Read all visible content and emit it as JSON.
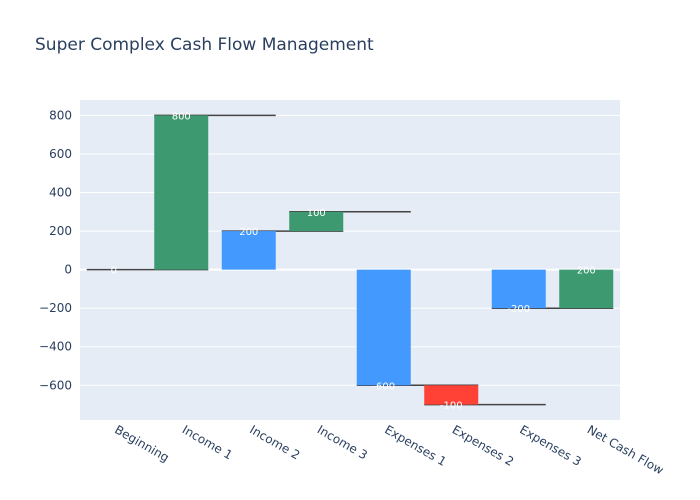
{
  "chart_data": {
    "type": "bar",
    "title": "Super Complex Cash Flow Management",
    "xlabel": "",
    "ylabel": "",
    "categories": [
      "Beginning",
      "Income 1",
      "Income 2",
      "Income 3",
      "Expenses 1",
      "Expenses 2",
      "Expenses 3",
      "Net Cash Flow"
    ],
    "bars": [
      {
        "base": 0,
        "top": 0,
        "label": "0",
        "color": "#3d9970"
      },
      {
        "base": 0,
        "top": 800,
        "label": "800",
        "color": "#3d9970"
      },
      {
        "base": 0,
        "top": 200,
        "label": "200",
        "color": "#4499ff"
      },
      {
        "base": 200,
        "top": 300,
        "label": "100",
        "color": "#3d9970"
      },
      {
        "base": 0,
        "top": -600,
        "label": "-600",
        "color": "#4499ff"
      },
      {
        "base": -600,
        "top": -700,
        "label": "-100",
        "color": "#ff4136"
      },
      {
        "base": 0,
        "top": -200,
        "label": "-200",
        "color": "#4499ff"
      },
      {
        "base": -200,
        "top": 0,
        "label": "200",
        "color": "#3d9970"
      }
    ],
    "connectors": [
      {
        "from": 0,
        "to": 1,
        "y": 0
      },
      {
        "from": 1,
        "to": 2,
        "y": 800
      },
      {
        "from": 2,
        "to": 3,
        "y": 200
      },
      {
        "from": 3,
        "to": 4,
        "y": 300
      },
      {
        "from": 4,
        "to": 5,
        "y": -600
      },
      {
        "from": 5,
        "to": 6,
        "y": -700
      },
      {
        "from": 6,
        "to": 7,
        "y": -200
      }
    ],
    "y_ticks": [
      800,
      600,
      400,
      200,
      0,
      -200,
      -400,
      -600
    ],
    "y_tick_labels": [
      "800",
      "600",
      "400",
      "200",
      "0",
      "−200",
      "−400",
      "−600"
    ],
    "ylim": [
      -780,
      880
    ],
    "grid": true,
    "legend": "none",
    "colors": {
      "plot_bg": "#e5ecf6",
      "grid": "#ffffff",
      "connector": "#444444",
      "text": "#2a3f5f"
    }
  }
}
